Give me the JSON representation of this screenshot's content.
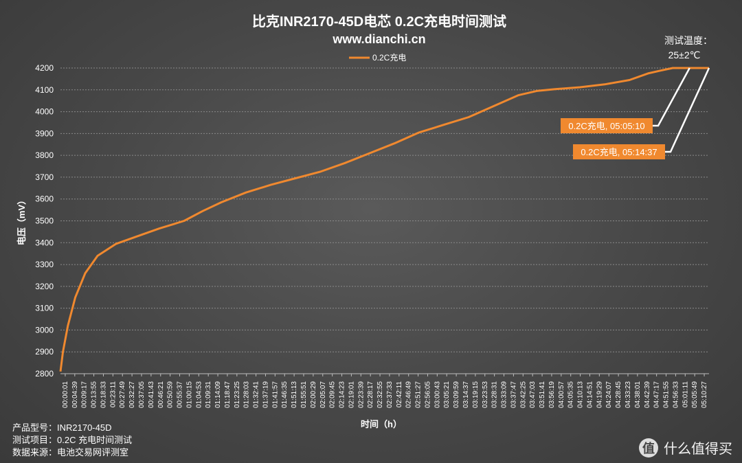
{
  "chart_data": {
    "type": "line",
    "title": "比克INR2170-45D电芯 0.2C充电时间测试",
    "subtitle": "www.dianchi.cn",
    "xlabel": "时间（h）",
    "ylabel": "电压（mV）",
    "ylim": [
      2800,
      4200
    ],
    "yticks": [
      2800,
      2900,
      3000,
      3100,
      3200,
      3300,
      3400,
      3500,
      3600,
      3700,
      3800,
      3900,
      4000,
      4100,
      4200
    ],
    "grid": true,
    "legend_position": "top-center",
    "xticks": [
      "00:00:01",
      "00:04:39",
      "00:09:17",
      "00:13:55",
      "00:18:33",
      "00:23:11",
      "00:27:49",
      "00:32:27",
      "00:37:05",
      "00:41:43",
      "00:46:21",
      "00:50:59",
      "00:55:37",
      "01:00:15",
      "01:04:53",
      "01:09:31",
      "01:14:09",
      "01:18:47",
      "01:23:25",
      "01:28:03",
      "01:32:41",
      "01:37:19",
      "01:41:57",
      "01:46:35",
      "01:51:13",
      "01:55:51",
      "02:00:29",
      "02:05:07",
      "02:09:45",
      "02:14:23",
      "02:19:01",
      "02:23:39",
      "02:28:17",
      "02:32:55",
      "02:37:33",
      "02:42:11",
      "02:46:49",
      "02:51:27",
      "02:56:05",
      "03:00:43",
      "03:05:21",
      "03:09:59",
      "03:14:37",
      "03:19:15",
      "03:23:53",
      "03:28:31",
      "03:33:09",
      "03:37:47",
      "03:42:25",
      "03:47:03",
      "03:51:41",
      "03:56:19",
      "04:00:57",
      "04:05:35",
      "04:10:13",
      "04:14:51",
      "04:19:29",
      "04:24:07",
      "04:28:45",
      "04:33:23",
      "04:38:01",
      "04:42:39",
      "04:47:17",
      "04:51:55",
      "04:56:33",
      "05:01:11",
      "05:05:49",
      "05:10:27"
    ],
    "series": [
      {
        "name": "0.2C充电",
        "color": "#f0892f",
        "x_hours": [
          0,
          0.02,
          0.06,
          0.12,
          0.2,
          0.3,
          0.45,
          0.6,
          0.8,
          1.0,
          1.15,
          1.3,
          1.5,
          1.7,
          1.9,
          2.1,
          2.3,
          2.5,
          2.7,
          2.9,
          3.1,
          3.3,
          3.5,
          3.7,
          3.85,
          4.0,
          4.2,
          4.4,
          4.6,
          4.75,
          4.85,
          4.95,
          5.0,
          5.05,
          5.086,
          5.243
        ],
        "values": [
          2810,
          2900,
          3020,
          3150,
          3260,
          3340,
          3395,
          3425,
          3465,
          3500,
          3545,
          3585,
          3630,
          3665,
          3695,
          3725,
          3765,
          3810,
          3855,
          3905,
          3940,
          3975,
          4025,
          4075,
          4095,
          4103,
          4112,
          4125,
          4145,
          4175,
          4188,
          4200,
          4200,
          4200,
          4200,
          4200
        ]
      }
    ],
    "annotations": [
      {
        "text": "0.2C充电, 05:05:10",
        "x_hours": 5.086,
        "y": 4200
      },
      {
        "text": "0.2C充电, 05:14:37",
        "x_hours": 5.243,
        "y": 4200
      }
    ],
    "note": {
      "line1": "测试温度：",
      "line2": "25±2℃"
    }
  },
  "footer": {
    "line1": "产品型号：INR2170-45D",
    "line2": "测试项目：0.2C 充电时间测试",
    "line3": "数据来源：电池交易网评测室"
  },
  "watermark": {
    "badge": "值",
    "text": "什么值得买"
  }
}
